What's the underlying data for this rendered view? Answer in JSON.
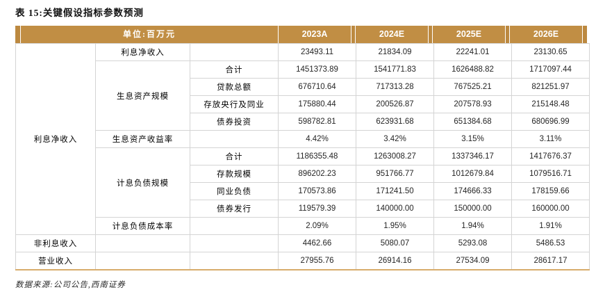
{
  "title": "表 15:关键假设指标参数预测",
  "source_note": "数据来源:公司公告,西南证券",
  "colors": {
    "header_bg": "#C18E44",
    "header_text": "#FFFFFF",
    "bottom_border": "#D8AC6B",
    "grid_line": "#D4D4D4",
    "value_text": "#262626"
  },
  "table": {
    "unit_header": "单位:百万元",
    "year_headers": [
      "2023A",
      "2024E",
      "2025E",
      "2026E"
    ],
    "rows": [
      {
        "cells": [
          {
            "col": 0,
            "rowspan": 11,
            "text": "利息净收入"
          },
          {
            "col": 1,
            "rowspan": 1,
            "text": "利息净收入"
          },
          {
            "col": 2,
            "rowspan": 1,
            "text": ""
          }
        ],
        "values": [
          "23493.11",
          "21834.09",
          "22241.01",
          "23130.65"
        ]
      },
      {
        "cells": [
          {
            "col": 1,
            "rowspan": 4,
            "text": "生息资产规模"
          },
          {
            "col": 2,
            "rowspan": 1,
            "text": "合计"
          }
        ],
        "values": [
          "1451373.89",
          "1541771.83",
          "1626488.82",
          "1717097.44"
        ]
      },
      {
        "cells": [
          {
            "col": 2,
            "rowspan": 1,
            "text": "贷款总额"
          }
        ],
        "values": [
          "676710.64",
          "717313.28",
          "767525.21",
          "821251.97"
        ]
      },
      {
        "cells": [
          {
            "col": 2,
            "rowspan": 1,
            "text": "存放央行及同业"
          }
        ],
        "values": [
          "175880.44",
          "200526.87",
          "207578.93",
          "215148.48"
        ]
      },
      {
        "cells": [
          {
            "col": 2,
            "rowspan": 1,
            "text": "债券投资"
          }
        ],
        "values": [
          "598782.81",
          "623931.68",
          "651384.68",
          "680696.99"
        ]
      },
      {
        "cells": [
          {
            "col": 1,
            "rowspan": 1,
            "text": "生息资产收益率"
          },
          {
            "col": 2,
            "rowspan": 1,
            "text": ""
          }
        ],
        "values": [
          "4.42%",
          "3.42%",
          "3.15%",
          "3.11%"
        ]
      },
      {
        "cells": [
          {
            "col": 1,
            "rowspan": 4,
            "text": "计息负债规模"
          },
          {
            "col": 2,
            "rowspan": 1,
            "text": "合计"
          }
        ],
        "values": [
          "1186355.48",
          "1263008.27",
          "1337346.17",
          "1417676.37"
        ]
      },
      {
        "cells": [
          {
            "col": 2,
            "rowspan": 1,
            "text": "存款规模"
          }
        ],
        "values": [
          "896202.23",
          "951766.77",
          "1012679.84",
          "1079516.71"
        ]
      },
      {
        "cells": [
          {
            "col": 2,
            "rowspan": 1,
            "text": "同业负债"
          }
        ],
        "values": [
          "170573.86",
          "171241.50",
          "174666.33",
          "178159.66"
        ]
      },
      {
        "cells": [
          {
            "col": 2,
            "rowspan": 1,
            "text": "债券发行"
          }
        ],
        "values": [
          "119579.39",
          "140000.00",
          "150000.00",
          "160000.00"
        ]
      },
      {
        "cells": [
          {
            "col": 1,
            "rowspan": 1,
            "text": "计息负债成本率"
          },
          {
            "col": 2,
            "rowspan": 1,
            "text": ""
          }
        ],
        "values": [
          "2.09%",
          "1.95%",
          "1.94%",
          "1.91%"
        ]
      },
      {
        "cells": [
          {
            "col": 0,
            "rowspan": 1,
            "text": "非利息收入"
          },
          {
            "col": 1,
            "rowspan": 1,
            "text": ""
          },
          {
            "col": 2,
            "rowspan": 1,
            "text": ""
          }
        ],
        "values": [
          "4462.66",
          "5080.07",
          "5293.08",
          "5486.53"
        ]
      },
      {
        "cells": [
          {
            "col": 0,
            "rowspan": 1,
            "text": "营业收入"
          },
          {
            "col": 1,
            "rowspan": 1,
            "text": ""
          },
          {
            "col": 2,
            "rowspan": 1,
            "text": ""
          }
        ],
        "values": [
          "27955.76",
          "26914.16",
          "27534.09",
          "28617.17"
        ]
      }
    ]
  }
}
